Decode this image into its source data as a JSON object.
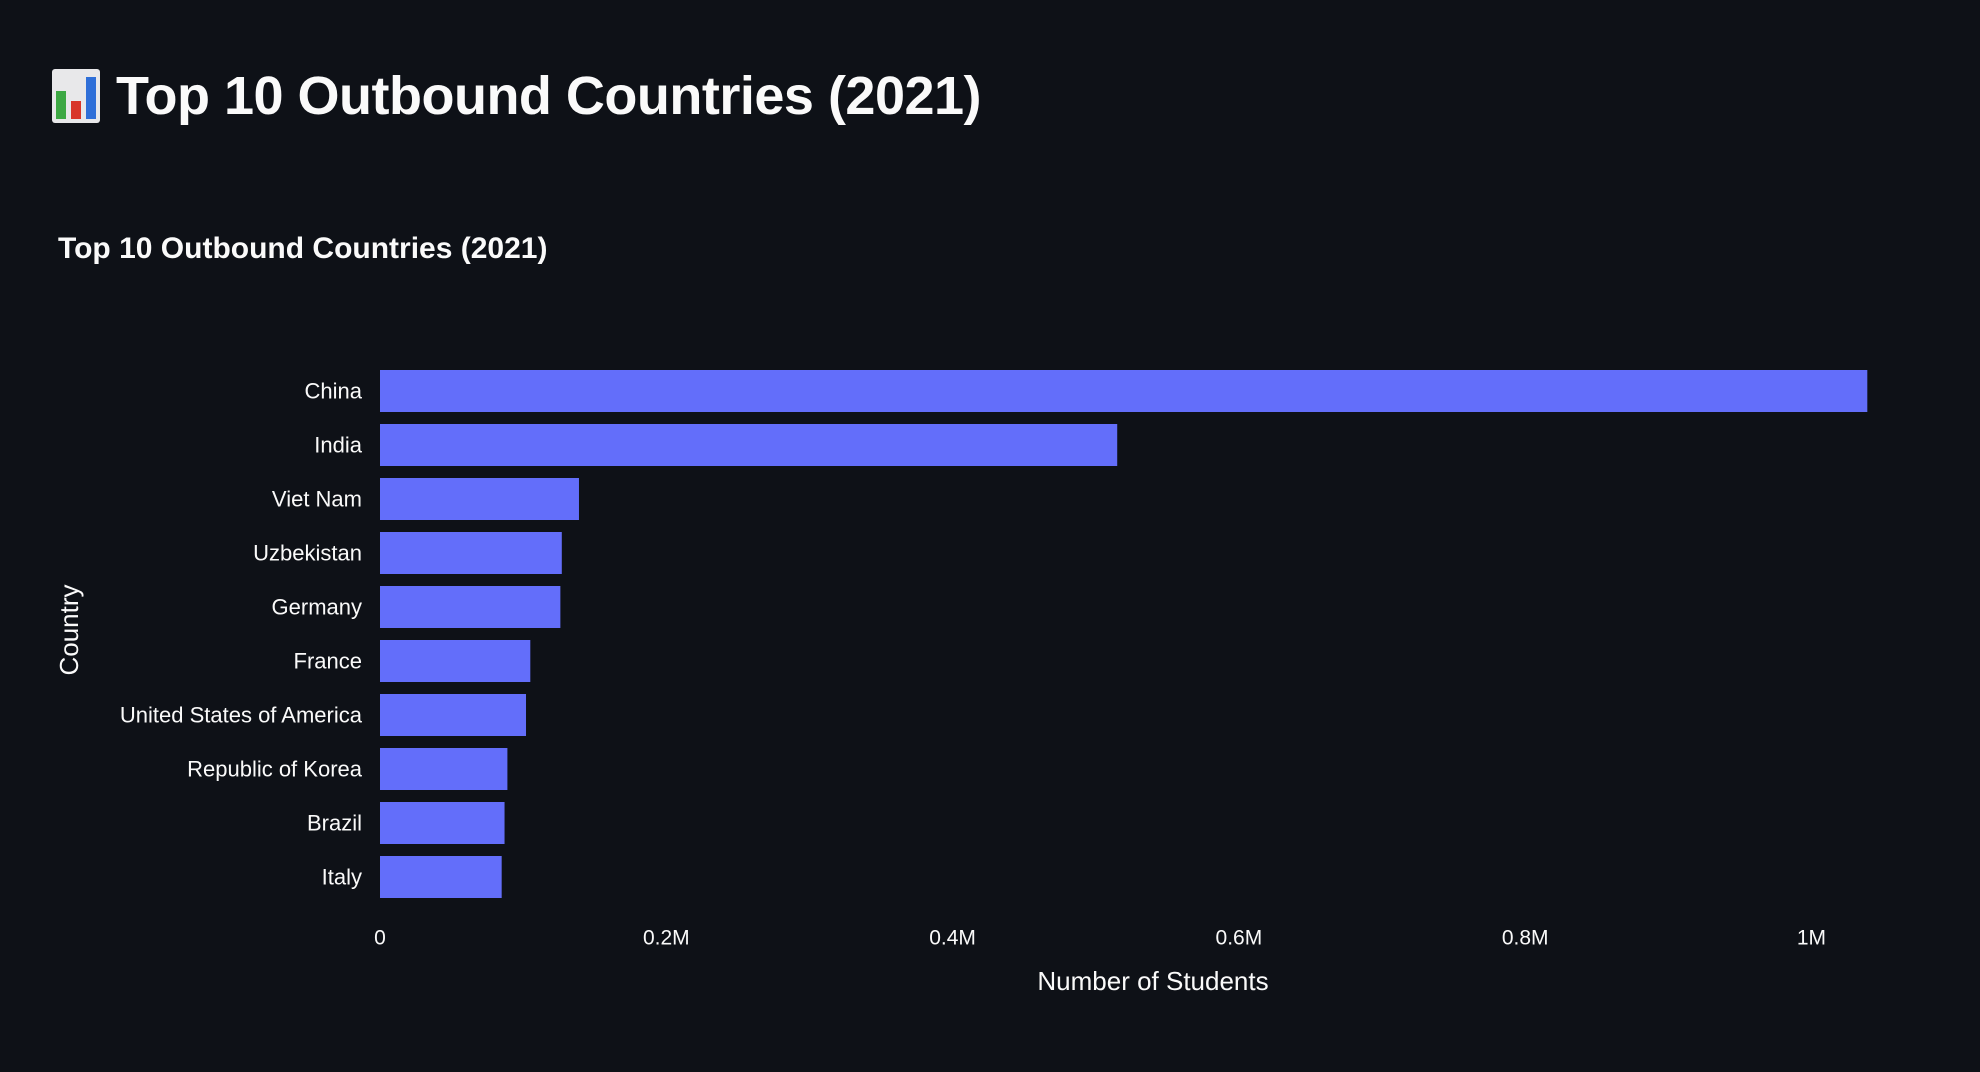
{
  "page": {
    "title": "Top 10 Outbound Countries (2021)",
    "title_icon": "bar-chart-icon"
  },
  "colors": {
    "background": "#0e1117",
    "bar": "#636efa",
    "text": "#fafafa"
  },
  "chart_data": {
    "type": "bar",
    "orientation": "horizontal",
    "title": "Top 10 Outbound Countries (2021)",
    "xlabel": "Number of Students",
    "ylabel": "Country",
    "categories": [
      "China",
      "India",
      "Viet Nam",
      "Uzbekistan",
      "Germany",
      "France",
      "United States of America",
      "Republic of Korea",
      "Brazil",
      "Italy"
    ],
    "values": [
      1039000,
      515000,
      139000,
      127000,
      126000,
      105000,
      102000,
      89000,
      87000,
      85000
    ],
    "xlim": [
      0,
      1080000
    ],
    "xticks": [
      0,
      200000,
      400000,
      600000,
      800000,
      1000000
    ],
    "xtick_labels": [
      "0",
      "0.2M",
      "0.4M",
      "0.6M",
      "0.8M",
      "1M"
    ],
    "grid": false,
    "legend": "none"
  }
}
